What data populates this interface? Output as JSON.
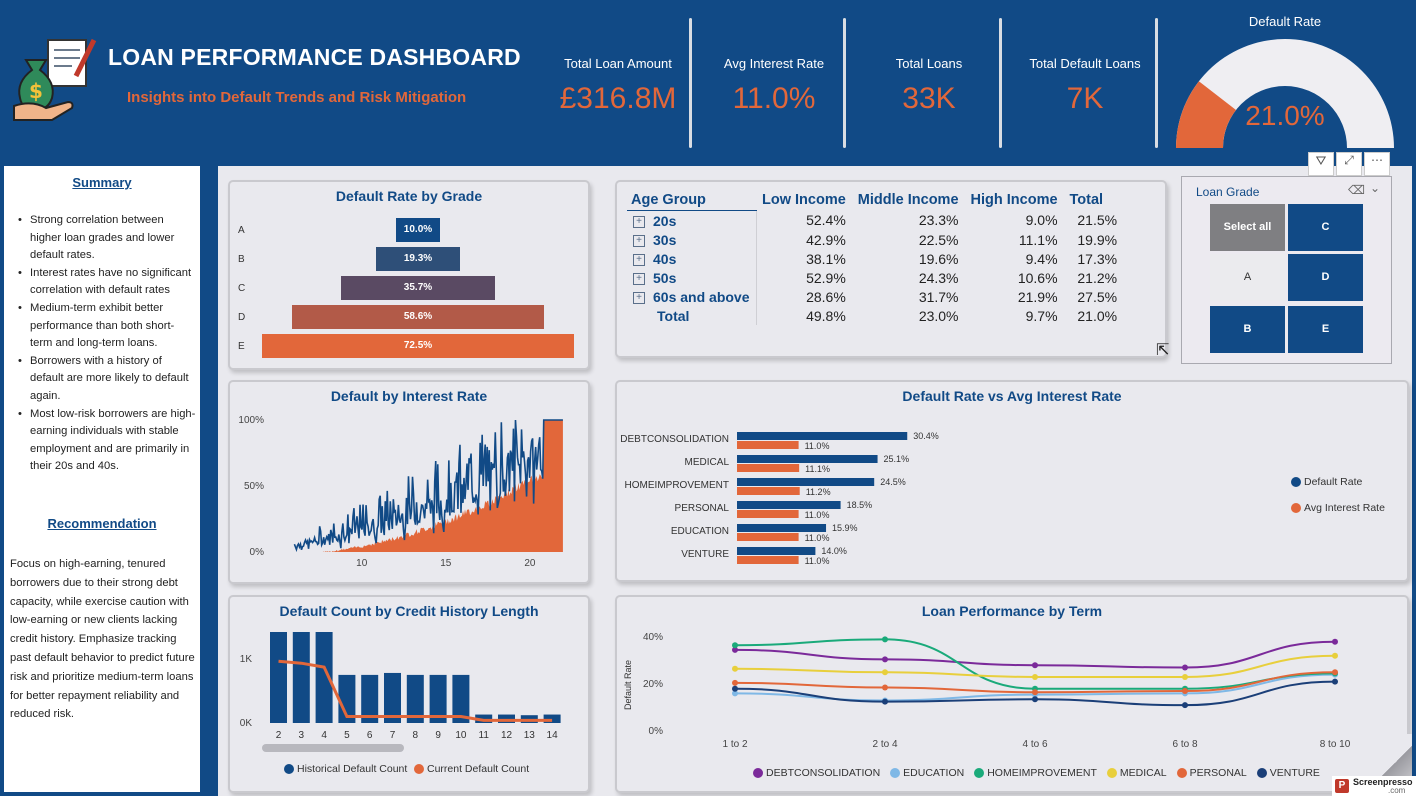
{
  "header": {
    "title": "LOAN PERFORMANCE DASHBOARD",
    "subtitle": "Insights into Default Trends and Risk Mitigation",
    "kpis": [
      {
        "label": "Total Loan Amount",
        "value": "£316.8M"
      },
      {
        "label": "Avg Interest Rate",
        "value": "11.0%"
      },
      {
        "label": "Total Loans",
        "value": "33K"
      },
      {
        "label": "Total Default Loans",
        "value": "7K"
      }
    ],
    "gauge": {
      "label": "Default Rate",
      "value": "21.0%",
      "fraction": 0.21
    }
  },
  "summary": {
    "heading": "Summary",
    "points": [
      "Strong correlation between higher loan grades and lower default rates.",
      "Interest rates have no significant correlation with default rates",
      "Medium-term exhibit better performance than both short-term and long-term loans.",
      "Borrowers with a history of default are more likely to default again.",
      "Most low-risk borrowers are high-earning individuals with stable employment and are primarily in their 20s and 40s."
    ],
    "rec_heading": "Recommendation",
    "recommendation": "Focus on high-earning, tenured borrowers due to their strong debt capacity, while exercise caution with low-earning or new clients lacking credit history. Emphasize tracking past default behavior to predict future risk and prioritize medium-term loans for better repayment reliability and reduced risk."
  },
  "grade_chart": {
    "title": "Default Rate by Grade",
    "type": "bar",
    "categories": [
      "A",
      "B",
      "C",
      "D",
      "E"
    ],
    "values": [
      10.0,
      19.3,
      35.7,
      58.6,
      72.5
    ],
    "labels": [
      "10.0%",
      "19.3%",
      "35.7%",
      "58.6%",
      "72.5%"
    ],
    "colors": [
      "#114a86",
      "#2e4f78",
      "#5a4a63",
      "#b25a48",
      "#e2673a"
    ]
  },
  "interest_chart": {
    "title": "Default by Interest Rate",
    "type": "area",
    "y_ticks": [
      "100%",
      "50%",
      "0%"
    ],
    "x_ticks": [
      "10",
      "15",
      "20"
    ],
    "xlim": [
      5.5,
      22.5
    ],
    "ylim": [
      0,
      100
    ]
  },
  "matrix": {
    "headers": [
      "Age Group",
      "Low Income",
      "Middle Income",
      "High Income",
      "Total"
    ],
    "rows": [
      {
        "group": "20s",
        "low": "52.4%",
        "mid": "23.3%",
        "high": "9.0%",
        "total": "21.5%"
      },
      {
        "group": "30s",
        "low": "42.9%",
        "mid": "22.5%",
        "high": "11.1%",
        "total": "19.9%"
      },
      {
        "group": "40s",
        "low": "38.1%",
        "mid": "19.6%",
        "high": "9.4%",
        "total": "17.3%"
      },
      {
        "group": "50s",
        "low": "52.9%",
        "mid": "24.3%",
        "high": "10.6%",
        "total": "21.2%"
      },
      {
        "group": "60s and above",
        "low": "28.6%",
        "mid": "31.7%",
        "high": "21.9%",
        "total": "27.5%"
      }
    ],
    "total_row": {
      "group": "Total",
      "low": "49.8%",
      "mid": "23.0%",
      "high": "9.7%",
      "total": "21.0%"
    }
  },
  "slicer": {
    "title": "Loan Grade",
    "buttons": [
      "Select all",
      "C",
      "A",
      "D",
      "B",
      "E"
    ]
  },
  "purpose_chart": {
    "title": "Default Rate vs Avg Interest Rate",
    "type": "bar",
    "categories": [
      "DEBTCONSOLIDATION",
      "MEDICAL",
      "HOMEIMPROVEMENT",
      "PERSONAL",
      "EDUCATION",
      "VENTURE"
    ],
    "series": [
      {
        "name": "Default Rate",
        "color": "#114a86",
        "values": [
          30.4,
          25.1,
          24.5,
          18.5,
          15.9,
          14.0
        ],
        "labels": [
          "30.4%",
          "25.1%",
          "24.5%",
          "18.5%",
          "15.9%",
          "14.0%"
        ]
      },
      {
        "name": "Avg Interest Rate",
        "color": "#e2673a",
        "values": [
          11.0,
          11.1,
          11.2,
          11.0,
          11.0,
          11.0
        ],
        "labels": [
          "11.0%",
          "11.1%",
          "11.2%",
          "11.0%",
          "11.0%",
          "11.0%"
        ]
      }
    ]
  },
  "credit_chart": {
    "title": "Default Count by Credit History Length",
    "type": "bar",
    "categories": [
      "2",
      "3",
      "4",
      "5",
      "6",
      "7",
      "8",
      "9",
      "10",
      "11",
      "12",
      "13",
      "14"
    ],
    "y_ticks": [
      "1K",
      "0K"
    ],
    "ylim": [
      0,
      1600
    ],
    "series": [
      {
        "name": "Historical Default Count",
        "color": "#114a86",
        "values": [
          1400,
          1400,
          1400,
          740,
          740,
          770,
          740,
          740,
          740,
          130,
          130,
          120,
          130
        ]
      },
      {
        "name": "Current Default Count",
        "color": "#e2673a",
        "values": [
          950,
          920,
          860,
          100,
          100,
          100,
          100,
          100,
          100,
          40,
          40,
          40,
          40
        ]
      }
    ]
  },
  "term_chart": {
    "title": "Loan Performance by Term",
    "type": "line",
    "ylabel": "Default Rate",
    "x": [
      "1 to 2",
      "2 to 4",
      "4 to 6",
      "6 to 8",
      "8 to 10"
    ],
    "y_ticks": [
      "40%",
      "20%",
      "0%"
    ],
    "ylim": [
      0,
      40
    ],
    "series": [
      {
        "name": "DEBTCONSOLIDATION",
        "color": "#7b2a9a",
        "values": [
          34.5,
          30.5,
          28.0,
          27.0,
          38.0
        ]
      },
      {
        "name": "EDUCATION",
        "color": "#7fb8e6",
        "values": [
          16.0,
          13.0,
          15.5,
          16.0,
          24.0
        ]
      },
      {
        "name": "HOMEIMPROVEMENT",
        "color": "#1aaa7a",
        "values": [
          36.5,
          39.0,
          18.0,
          18.0,
          24.5
        ]
      },
      {
        "name": "MEDICAL",
        "color": "#e8cf3c",
        "values": [
          26.5,
          25.0,
          23.0,
          23.0,
          32.0
        ]
      },
      {
        "name": "PERSONAL",
        "color": "#e2673a",
        "values": [
          20.5,
          18.5,
          16.5,
          17.0,
          25.0
        ]
      },
      {
        "name": "VENTURE",
        "color": "#1b3f78",
        "values": [
          18.0,
          12.5,
          13.5,
          11.0,
          21.0
        ]
      }
    ]
  },
  "watermark": {
    "text": "Screenpresso",
    "sub": ".com"
  }
}
